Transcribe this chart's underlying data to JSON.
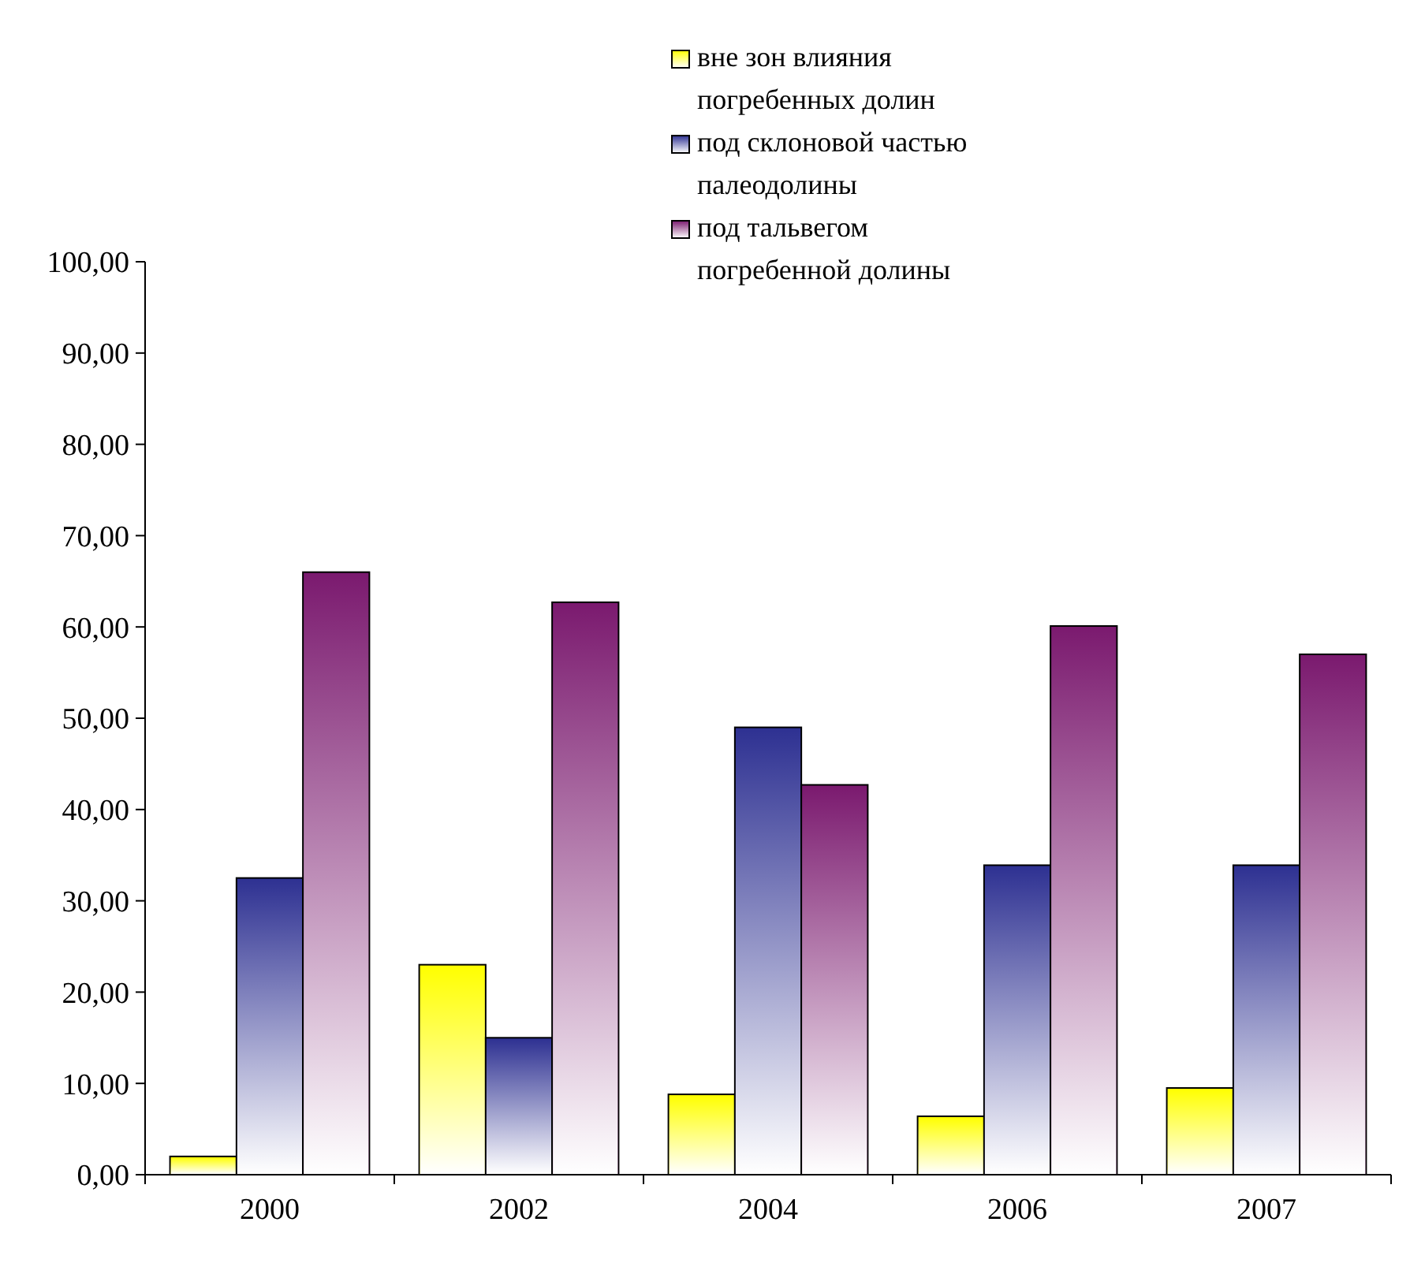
{
  "chart_data": {
    "type": "bar",
    "categories": [
      "2000",
      "2002",
      "2004",
      "2006",
      "2007"
    ],
    "series": [
      {
        "name": "вне зон влияния погребенных долин",
        "color": "#ffff00",
        "values": [
          2,
          23,
          8.8,
          6.4,
          9.5
        ]
      },
      {
        "name": "под склоновой частью палеодолины",
        "color": "#2e3192",
        "values": [
          32.5,
          15,
          49,
          33.9,
          33.9
        ]
      },
      {
        "name": "под тальвегом погребенной долины",
        "color": "#7b1a6f",
        "values": [
          66,
          62.7,
          42.7,
          60.1,
          57
        ]
      }
    ],
    "ylim": [
      0,
      100
    ],
    "yticks": [
      {
        "value": 0,
        "label": "0,00"
      },
      {
        "value": 10,
        "label": "10,00"
      },
      {
        "value": 20,
        "label": "20,00"
      },
      {
        "value": 30,
        "label": "30,00"
      },
      {
        "value": 40,
        "label": "40,00"
      },
      {
        "value": 50,
        "label": "50,00"
      },
      {
        "value": 60,
        "label": "60,00"
      },
      {
        "value": 70,
        "label": "70,00"
      },
      {
        "value": 80,
        "label": "80,00"
      },
      {
        "value": 90,
        "label": "90,00"
      },
      {
        "value": 100,
        "label": "100,00"
      }
    ],
    "grid": false,
    "legend": "top right"
  }
}
